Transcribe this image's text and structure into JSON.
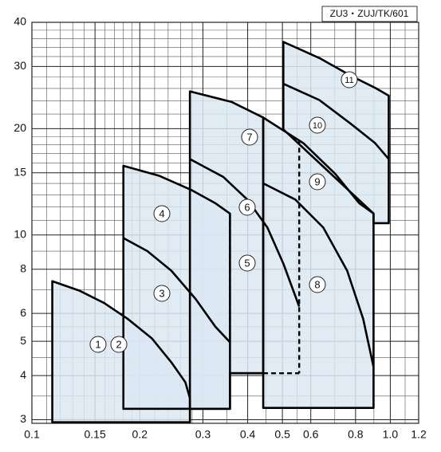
{
  "chart_data": {
    "type": "area",
    "title": "ZU3・ZUJ/TK/601",
    "log_x": true,
    "log_y": true,
    "grid": true,
    "color": "#dbe8f2",
    "xlim": [
      0.1,
      1.2
    ],
    "ylim": [
      2.93,
      40
    ],
    "xticks": [
      0.1,
      0.15,
      0.2,
      0.3,
      0.4,
      0.5,
      0.6,
      0.8,
      {
        "value": 1,
        "label": "1.0"
      },
      1.2
    ],
    "yticks": [
      3,
      4,
      5,
      6,
      8,
      10,
      15,
      20,
      30,
      40
    ],
    "xminor": [
      0.11,
      0.12,
      0.13,
      0.14,
      0.16,
      0.17,
      0.18,
      0.19,
      0.22,
      0.24,
      0.26,
      0.28,
      0.35,
      0.45,
      0.55,
      0.7,
      0.9,
      1.1
    ],
    "yminor": [
      3.5,
      4.5,
      5.5,
      7,
      9,
      11,
      12,
      13,
      14,
      16,
      17,
      18,
      19,
      22,
      24,
      26,
      28,
      32,
      34,
      36,
      38
    ],
    "curve_labels": [
      "1",
      "2",
      "3",
      "4",
      "5",
      "6",
      "7",
      "8",
      "9",
      "10",
      "11"
    ],
    "regions": [
      {
        "x": [
          0.114,
          0.114,
          0.136,
          0.159,
          0.185,
          0.216,
          0.245,
          0.268,
          0.276,
          0.276
        ],
        "y": [
          2.95,
          7.4,
          6.95,
          6.42,
          5.79,
          5.1,
          4.36,
          3.83,
          3.45,
          2.95
        ]
      },
      {
        "x": [
          0.18,
          0.18,
          0.227,
          0.279,
          0.325,
          0.357,
          0.357
        ],
        "y": [
          3.22,
          15.7,
          14.7,
          13.4,
          12.3,
          11.5,
          3.22
        ]
      },
      {
        "x": [
          0.276,
          0.276,
          0.361,
          0.442,
          0.442,
          0.357,
          0.357
        ],
        "y": [
          3.22,
          25.5,
          23.8,
          21.5,
          4.06,
          4.06,
          3.22
        ]
      },
      {
        "x": [
          0.442,
          0.442,
          0.572,
          0.702,
          0.819,
          0.898,
          0.898
        ],
        "y": [
          3.24,
          21.5,
          18.2,
          14.9,
          12.3,
          11.5,
          3.24
        ]
      },
      {
        "x": [
          0.503,
          0.503,
          0.634,
          0.778,
          0.907,
          0.99,
          0.99,
          0.898,
          0.898
        ],
        "y": [
          19.9,
          35.2,
          31.7,
          28.2,
          26.1,
          24.8,
          10.8,
          10.8,
          11.5
        ]
      }
    ],
    "curves": [
      {
        "x": [
          0.18,
          0.21,
          0.245,
          0.286,
          0.325,
          0.357
        ],
        "y": [
          9.8,
          9.0,
          7.92,
          6.6,
          5.5,
          4.97
        ]
      },
      {
        "x": [
          0.276,
          0.342,
          0.399,
          0.454,
          0.503,
          0.557
        ],
        "y": [
          16.4,
          14.6,
          12.6,
          10.5,
          8.3,
          6.27
        ]
      },
      {
        "x": [
          0.442,
          0.543,
          0.65,
          0.758,
          0.84,
          0.898
        ],
        "y": [
          14.0,
          12.6,
          10.5,
          7.92,
          5.79,
          4.23
        ]
      },
      {
        "x": [
          0.503,
          0.634,
          0.778,
          0.907,
          0.99
        ],
        "y": [
          26.8,
          24.1,
          20.6,
          18.2,
          16.4
        ]
      },
      {
        "x": [
          0.357,
          0.442
        ],
        "y": [
          4.06,
          4.06
        ]
      }
    ],
    "dashed": [
      {
        "x": [
          0.357,
          0.357
        ],
        "y": [
          11.5,
          4.97
        ]
      },
      {
        "x": [
          0.557,
          0.557
        ],
        "y": [
          18.6,
          4.06
        ]
      },
      {
        "x": [
          0.442,
          0.557
        ],
        "y": [
          4.06,
          4.06
        ]
      }
    ]
  }
}
